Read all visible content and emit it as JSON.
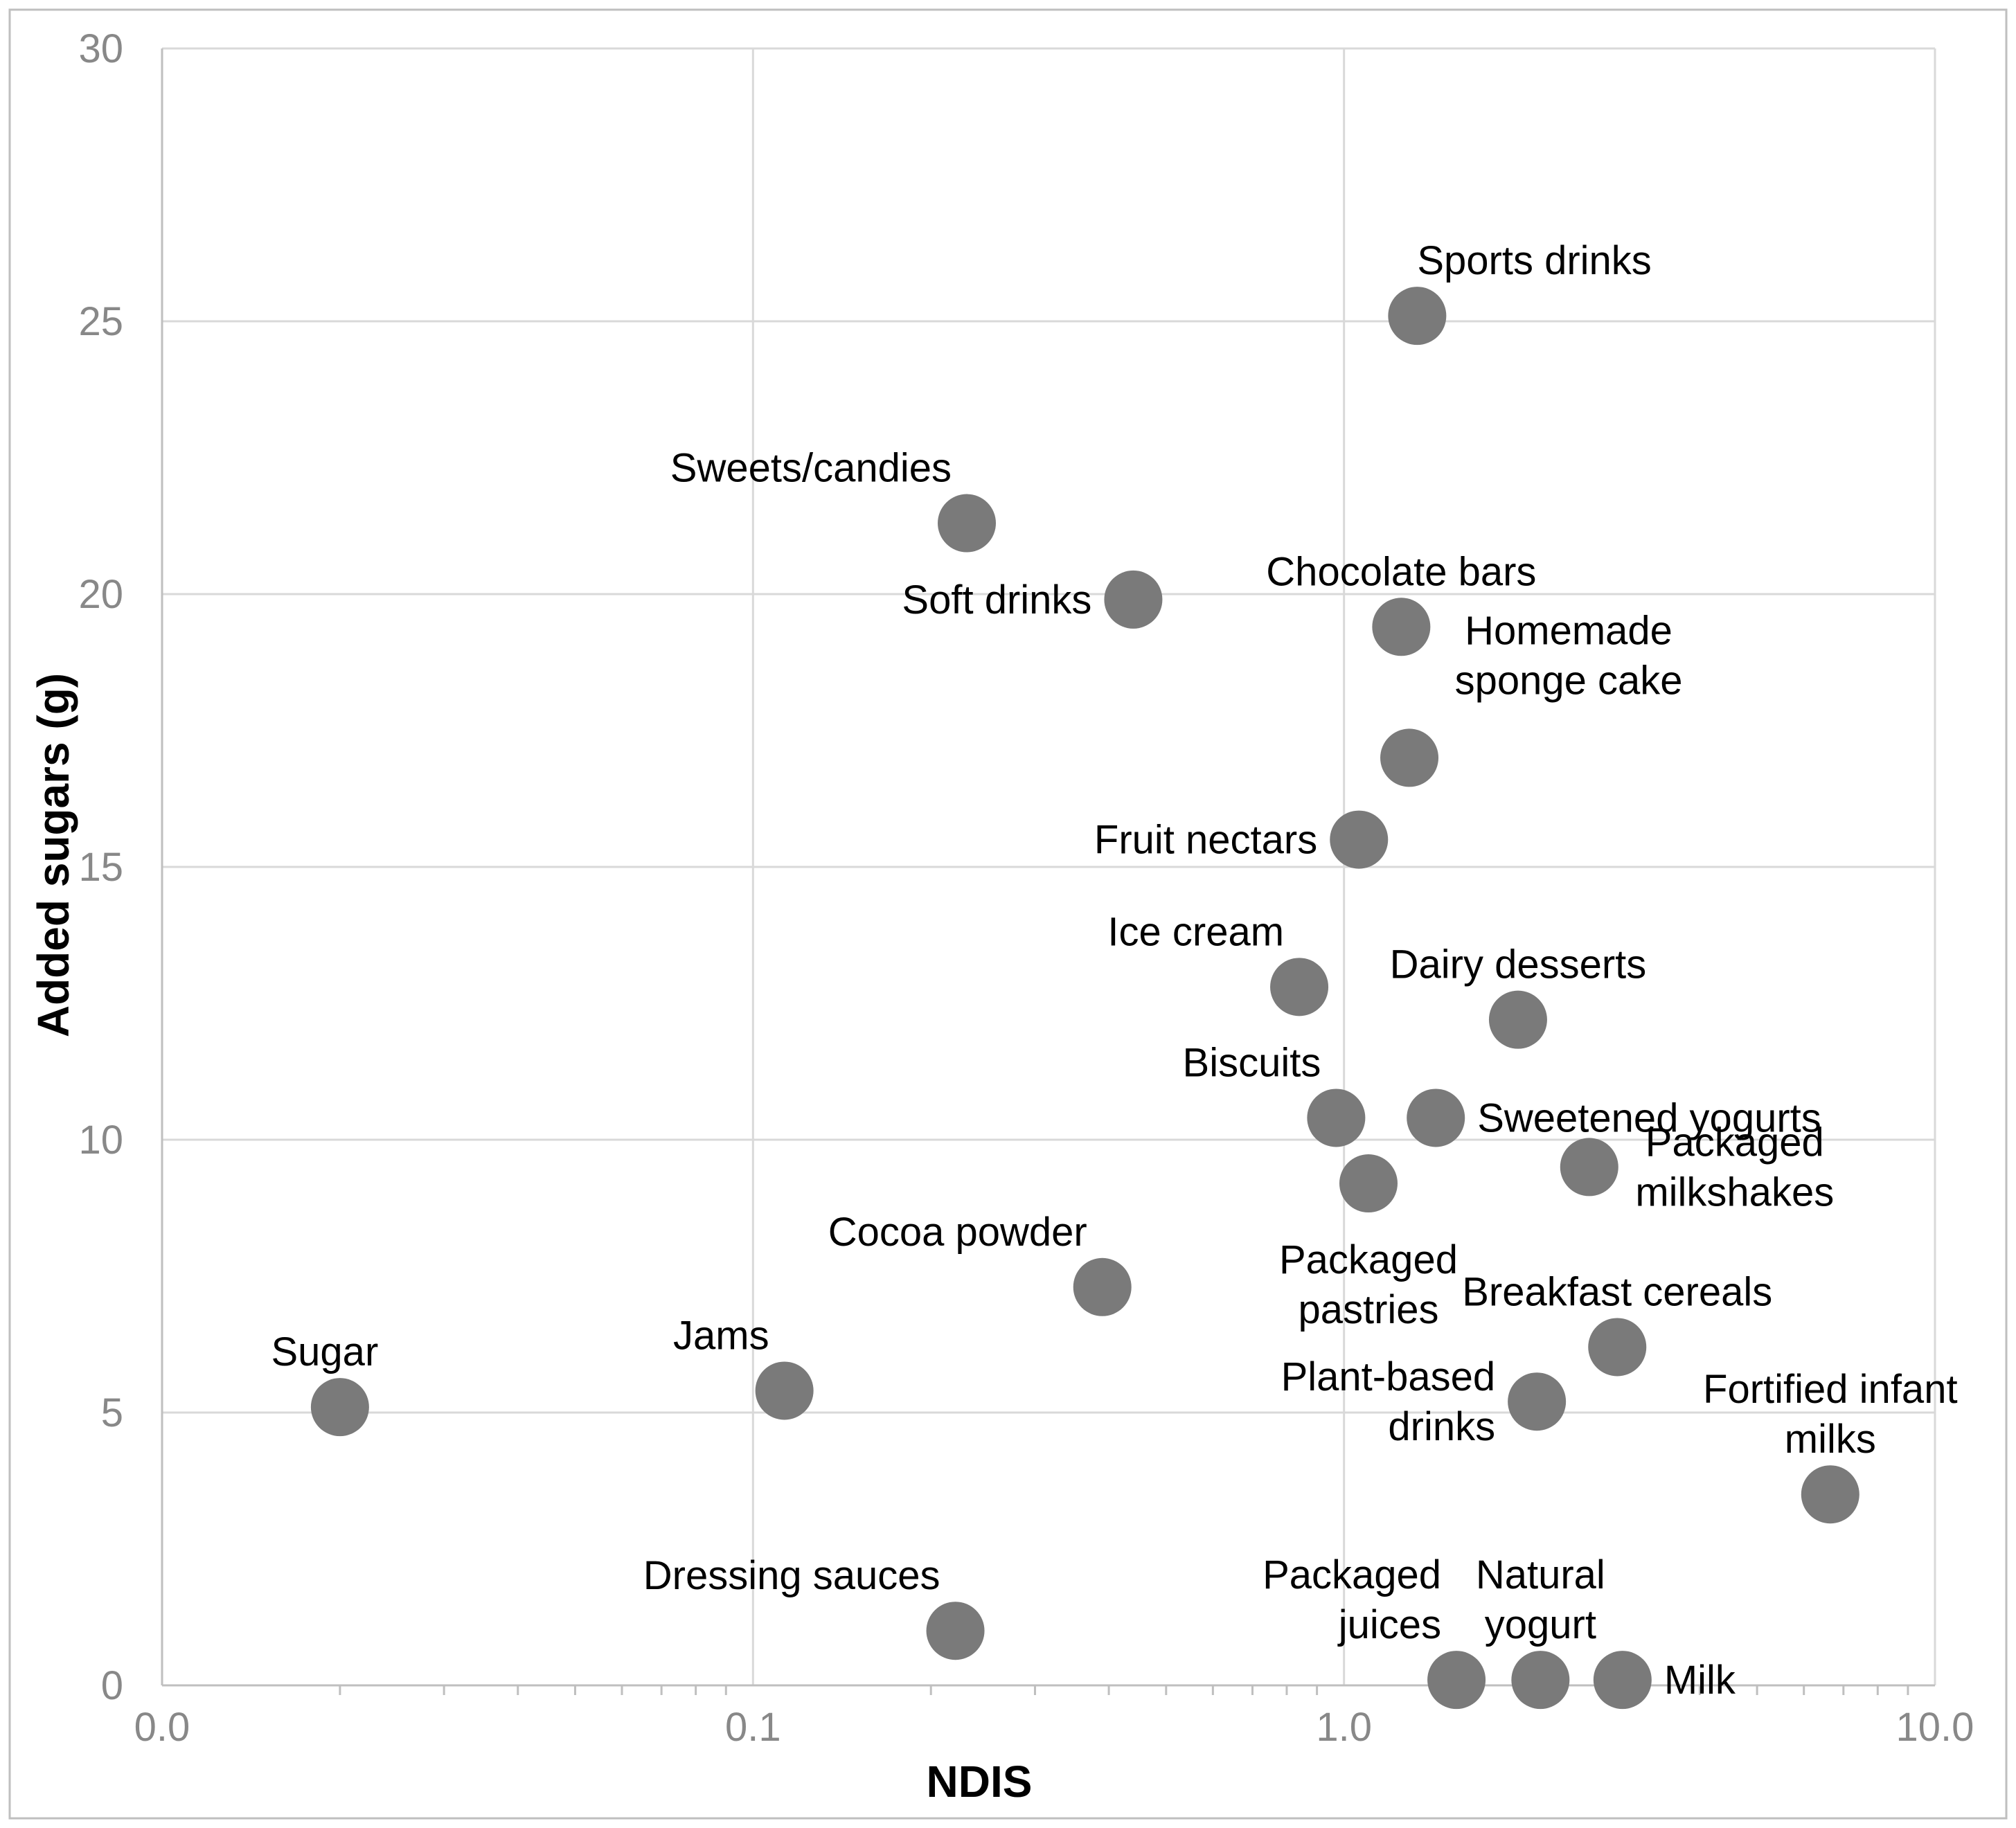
{
  "chart_data": {
    "type": "scatter",
    "xlabel": "NDIS",
    "ylabel": "Added sugars (g)",
    "x_scale": "log",
    "xlim": [
      0.01,
      10
    ],
    "ylim": [
      0,
      30
    ],
    "x_ticks": [
      {
        "value": 0.01,
        "label": "0.0"
      },
      {
        "value": 0.1,
        "label": "0.1"
      },
      {
        "value": 1,
        "label": "1.0"
      },
      {
        "value": 10,
        "label": "10.0"
      }
    ],
    "y_ticks": [
      {
        "value": 0,
        "label": "0"
      },
      {
        "value": 5,
        "label": "5"
      },
      {
        "value": 10,
        "label": "10"
      },
      {
        "value": 15,
        "label": "15"
      },
      {
        "value": 20,
        "label": "20"
      },
      {
        "value": 25,
        "label": "25"
      },
      {
        "value": 30,
        "label": "30"
      }
    ],
    "grid": true,
    "marker_color": "#7a7a7a",
    "grid_color": "#d9d9d9",
    "points": [
      {
        "label": [
          "Sports drinks"
        ],
        "x": 1.33,
        "y": 25.1,
        "anchor": "start",
        "label_pos": "top"
      },
      {
        "label": [
          "Sweets/candies"
        ],
        "x": 0.23,
        "y": 21.3,
        "anchor": "end",
        "label_pos": "top-left"
      },
      {
        "label": [
          "Soft drinks"
        ],
        "x": 0.44,
        "y": 19.9,
        "anchor": "end",
        "label_pos": "left"
      },
      {
        "label": [
          "Chocolate bars"
        ],
        "x": 1.25,
        "y": 19.4,
        "anchor": "middle",
        "label_pos": "top"
      },
      {
        "label": [
          "Homemade",
          "sponge cake"
        ],
        "x": 1.29,
        "y": 17.0,
        "anchor": "middle",
        "label_pos": "top-right"
      },
      {
        "label": [
          "Fruit nectars"
        ],
        "x": 1.06,
        "y": 15.5,
        "anchor": "end",
        "label_pos": "left"
      },
      {
        "label": [
          "Ice cream"
        ],
        "x": 0.84,
        "y": 12.8,
        "anchor": "end",
        "label_pos": "top-left"
      },
      {
        "label": [
          "Dairy desserts"
        ],
        "x": 1.97,
        "y": 12.2,
        "anchor": "middle",
        "label_pos": "top"
      },
      {
        "label": [
          "Biscuits"
        ],
        "x": 0.97,
        "y": 10.4,
        "anchor": "end",
        "label_pos": "top-left"
      },
      {
        "label": [
          "Sweetened yogurts"
        ],
        "x": 1.43,
        "y": 10.4,
        "anchor": "start",
        "label_pos": "right"
      },
      {
        "label": [
          "Packaged",
          "pastries"
        ],
        "x": 1.1,
        "y": 9.2,
        "anchor": "middle",
        "label_pos": "below"
      },
      {
        "label": [
          "Packaged",
          "milkshakes"
        ],
        "x": 2.6,
        "y": 9.5,
        "anchor": "middle",
        "label_pos": "right"
      },
      {
        "label": [
          "Cocoa powder"
        ],
        "x": 0.39,
        "y": 7.3,
        "anchor": "end",
        "label_pos": "top-left"
      },
      {
        "label": [
          "Breakfast cereals"
        ],
        "x": 2.9,
        "y": 6.2,
        "anchor": "middle",
        "label_pos": "top"
      },
      {
        "label": [
          "Sugar"
        ],
        "x": 0.02,
        "y": 5.1,
        "anchor": "middle",
        "label_pos": "top-left"
      },
      {
        "label": [
          "Jams"
        ],
        "x": 0.113,
        "y": 5.4,
        "anchor": "end",
        "label_pos": "top-left"
      },
      {
        "label": [
          "Plant-based",
          "drinks"
        ],
        "x": 2.12,
        "y": 5.2,
        "anchor": "end",
        "label_pos": "left"
      },
      {
        "label": [
          "Fortified infant",
          "milks"
        ],
        "x": 6.65,
        "y": 3.5,
        "anchor": "middle",
        "label_pos": "top"
      },
      {
        "label": [
          "Dressing sauces"
        ],
        "x": 0.22,
        "y": 1.0,
        "anchor": "end",
        "label_pos": "top-left"
      },
      {
        "label": [
          "Packaged",
          "juices"
        ],
        "x": 1.55,
        "y": 0.1,
        "anchor": "end",
        "label_pos": "top-left"
      },
      {
        "label": [
          "Natural",
          "yogurt"
        ],
        "x": 2.15,
        "y": 0.1,
        "anchor": "middle",
        "label_pos": "top"
      },
      {
        "label": [
          "Milk"
        ],
        "x": 2.96,
        "y": 0.1,
        "anchor": "start",
        "label_pos": "right"
      }
    ]
  }
}
